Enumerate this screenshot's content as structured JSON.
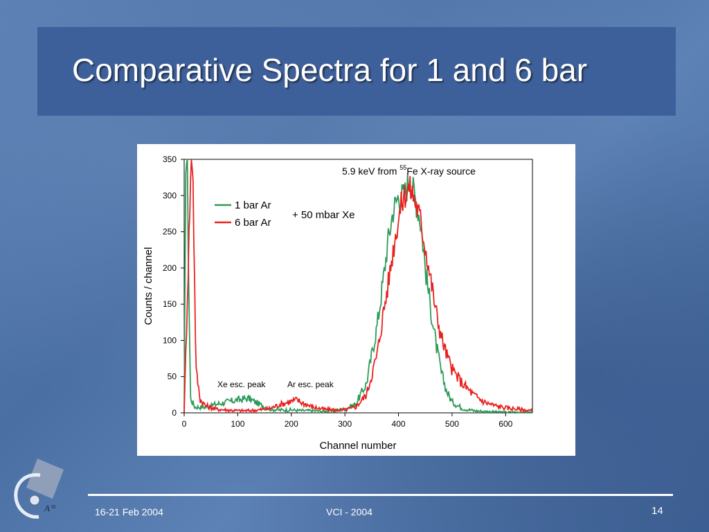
{
  "slide": {
    "title": "Comparative Spectra for 1 and 6 bar",
    "footer_date": "16-21 Feb 2004",
    "footer_conference": "VCI  - 2004",
    "page_number": "14",
    "logo_text": "A",
    "logo_text_small": "M"
  },
  "chart_data": {
    "type": "line",
    "title_prefix": "5.9 keV from ",
    "title_superscript": "55",
    "title_suffix": "Fe X-ray source",
    "xlabel": "Channel number",
    "ylabel": "Counts / channel",
    "xlim": [
      0,
      650
    ],
    "ylim": [
      0,
      350
    ],
    "xticks": [
      0,
      100,
      200,
      300,
      400,
      500,
      600
    ],
    "yticks": [
      0,
      50,
      100,
      150,
      200,
      250,
      300,
      350
    ],
    "grid": false,
    "legend_position": "top-left",
    "annotations": {
      "gas_note": "+ 50 mbar Xe",
      "xe_escape": "Xe esc. peak",
      "ar_escape": "Ar esc. peak"
    },
    "series": [
      {
        "name": "1 bar Ar",
        "color": "#2e9a5a",
        "x": [
          0,
          3,
          6,
          8,
          12,
          20,
          40,
          60,
          80,
          100,
          120,
          140,
          160,
          180,
          200,
          220,
          240,
          260,
          280,
          300,
          320,
          340,
          360,
          370,
          380,
          390,
          400,
          410,
          415,
          420,
          425,
          430,
          435,
          440,
          445,
          450,
          460,
          470,
          480,
          490,
          500,
          520,
          540,
          560,
          600,
          650
        ],
        "y": [
          0,
          350,
          350,
          200,
          20,
          8,
          8,
          12,
          15,
          18,
          20,
          12,
          5,
          4,
          4,
          3,
          3,
          2,
          3,
          5,
          12,
          40,
          120,
          175,
          235,
          280,
          300,
          300,
          310,
          325,
          315,
          300,
          285,
          270,
          240,
          200,
          145,
          95,
          55,
          30,
          15,
          6,
          3,
          2,
          1,
          1
        ]
      },
      {
        "name": "6 bar Ar",
        "color": "#e8201e",
        "x": [
          0,
          13,
          16,
          18,
          22,
          30,
          40,
          60,
          80,
          100,
          120,
          140,
          160,
          180,
          200,
          210,
          220,
          240,
          260,
          280,
          300,
          320,
          340,
          360,
          370,
          380,
          390,
          400,
          410,
          420,
          425,
          430,
          440,
          450,
          460,
          470,
          480,
          490,
          500,
          520,
          540,
          560,
          580,
          600,
          650
        ],
        "y": [
          0,
          350,
          350,
          250,
          60,
          18,
          10,
          5,
          4,
          3,
          3,
          4,
          6,
          12,
          16,
          18,
          14,
          8,
          5,
          4,
          4,
          8,
          25,
          80,
          130,
          175,
          225,
          270,
          300,
          310,
          305,
          295,
          270,
          230,
          185,
          140,
          105,
          80,
          60,
          40,
          25,
          15,
          10,
          7,
          3
        ]
      }
    ]
  }
}
